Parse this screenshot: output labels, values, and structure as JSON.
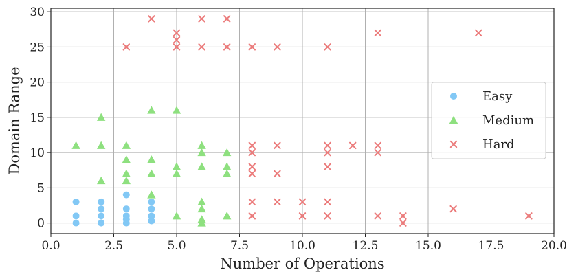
{
  "chart_data": {
    "type": "scatter",
    "xlabel": "Number of Operations",
    "ylabel": "Domain Range",
    "xlim": [
      0,
      20
    ],
    "ylim": [
      -1.5,
      30.5
    ],
    "xticks": [
      0,
      2.5,
      5,
      7.5,
      10,
      12.5,
      15,
      17.5,
      20
    ],
    "xtick_labels": [
      "0.0",
      "2.5",
      "5.0",
      "7.5",
      "10.0",
      "12.5",
      "15.0",
      "17.5",
      "20.0"
    ],
    "yticks": [
      0,
      5,
      10,
      15,
      20,
      25,
      30
    ],
    "ytick_labels": [
      "0",
      "5",
      "10",
      "15",
      "20",
      "25",
      "30"
    ],
    "grid": true,
    "legend_position": "center-right",
    "series": [
      {
        "name": "Easy",
        "marker": "circle",
        "color": "#82c8f5",
        "points": [
          [
            1,
            0
          ],
          [
            1,
            1
          ],
          [
            1,
            3
          ],
          [
            2,
            0
          ],
          [
            2,
            1
          ],
          [
            2,
            2
          ],
          [
            2,
            3
          ],
          [
            3,
            0
          ],
          [
            3,
            0.5
          ],
          [
            3,
            1
          ],
          [
            3,
            2
          ],
          [
            3,
            4
          ],
          [
            4,
            0.3
          ],
          [
            4,
            1
          ],
          [
            4,
            2
          ],
          [
            4,
            3
          ]
        ]
      },
      {
        "name": "Medium",
        "marker": "triangle",
        "color": "#8ee07f",
        "points": [
          [
            1,
            11
          ],
          [
            2,
            6
          ],
          [
            2,
            11
          ],
          [
            2,
            15
          ],
          [
            3,
            6
          ],
          [
            3,
            7
          ],
          [
            3,
            9
          ],
          [
            3,
            11
          ],
          [
            4,
            4
          ],
          [
            4,
            7
          ],
          [
            4,
            9
          ],
          [
            4,
            16
          ],
          [
            5,
            1
          ],
          [
            5,
            7
          ],
          [
            5,
            8
          ],
          [
            5,
            16
          ],
          [
            6,
            0
          ],
          [
            6,
            0.5
          ],
          [
            6,
            2
          ],
          [
            6,
            3
          ],
          [
            6,
            8
          ],
          [
            6,
            10
          ],
          [
            6,
            11
          ],
          [
            7,
            1
          ],
          [
            7,
            7
          ],
          [
            7,
            8
          ],
          [
            7,
            10
          ]
        ]
      },
      {
        "name": "Hard",
        "marker": "x",
        "color": "#eb7b7b",
        "points": [
          [
            3,
            25
          ],
          [
            4,
            29
          ],
          [
            5,
            25
          ],
          [
            5,
            26
          ],
          [
            5,
            27
          ],
          [
            6,
            25
          ],
          [
            6,
            29
          ],
          [
            7,
            25
          ],
          [
            7,
            29
          ],
          [
            8,
            1
          ],
          [
            8,
            3
          ],
          [
            8,
            7
          ],
          [
            8,
            8
          ],
          [
            8,
            10
          ],
          [
            8,
            11
          ],
          [
            8,
            25
          ],
          [
            9,
            3
          ],
          [
            9,
            7
          ],
          [
            9,
            11
          ],
          [
            9,
            25
          ],
          [
            10,
            1
          ],
          [
            10,
            3
          ],
          [
            11,
            1
          ],
          [
            11,
            3
          ],
          [
            11,
            8
          ],
          [
            11,
            10
          ],
          [
            11,
            11
          ],
          [
            11,
            25
          ],
          [
            12,
            11
          ],
          [
            13,
            1
          ],
          [
            13,
            10
          ],
          [
            13,
            11
          ],
          [
            13,
            27
          ],
          [
            14,
            0
          ],
          [
            14,
            1
          ],
          [
            16,
            2
          ],
          [
            17,
            27
          ],
          [
            19,
            1
          ]
        ]
      }
    ]
  }
}
